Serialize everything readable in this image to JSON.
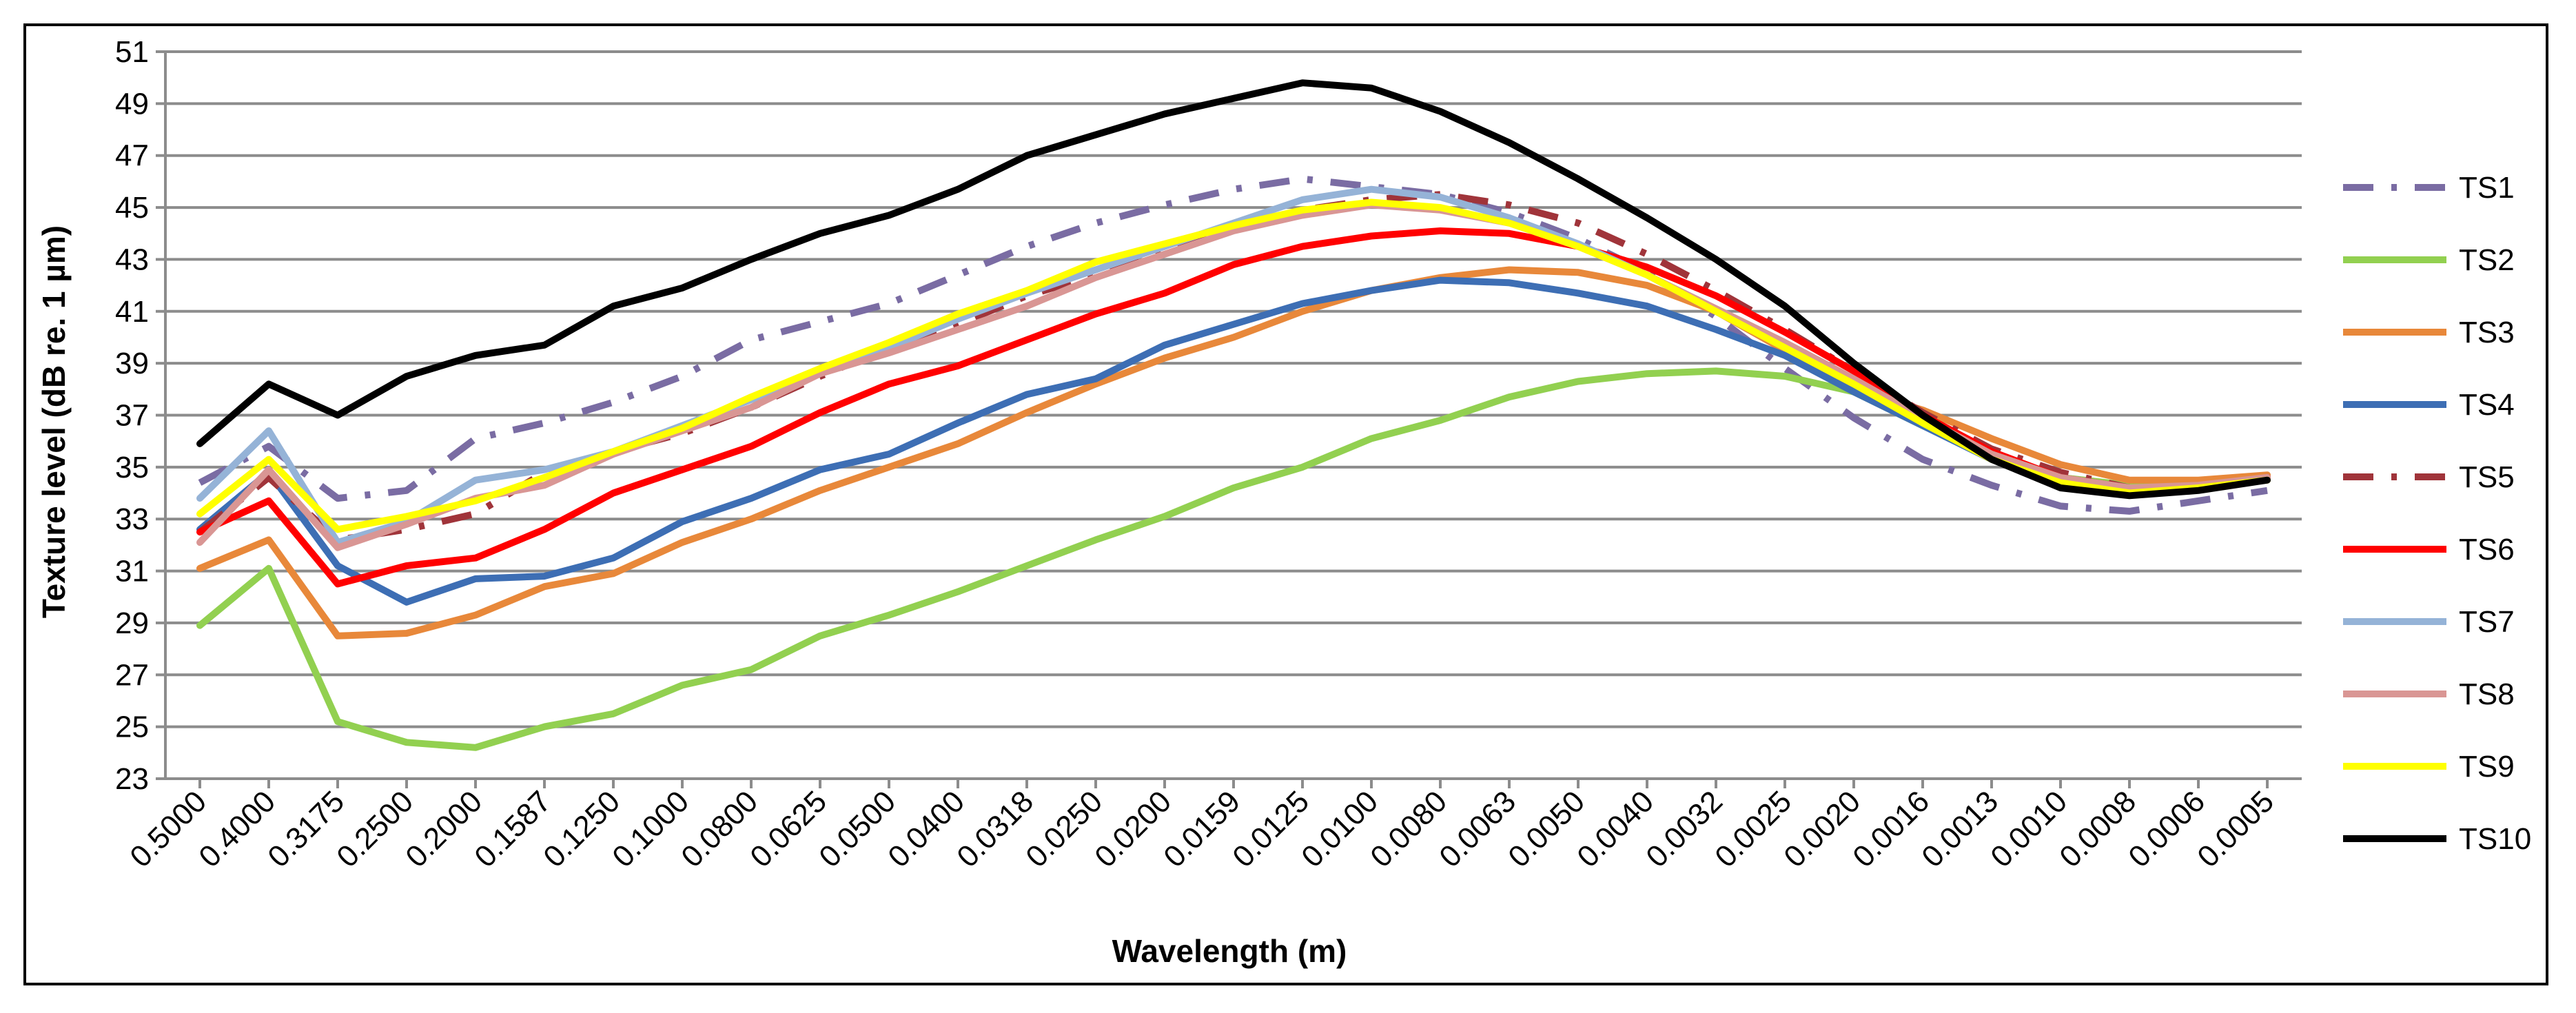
{
  "chart_data": {
    "type": "line",
    "title": "",
    "xlabel": "Wavelength (m)",
    "ylabel": "Texture level (dB re. 1 µm)",
    "ylim": [
      23,
      51
    ],
    "yticks": [
      23,
      25,
      27,
      29,
      31,
      33,
      35,
      37,
      39,
      41,
      43,
      45,
      47,
      49,
      51
    ],
    "grid": "horizontal",
    "legend": "right",
    "categories": [
      "0.5000",
      "0.4000",
      "0.3175",
      "0.2500",
      "0.2000",
      "0.1587",
      "0.1250",
      "0.1000",
      "0.0800",
      "0.0625",
      "0.0500",
      "0.0400",
      "0.0318",
      "0.0250",
      "0.0200",
      "0.0159",
      "0.0125",
      "0.0100",
      "0.0080",
      "0.0063",
      "0.0050",
      "0.0040",
      "0.0032",
      "0.0025",
      "0.0020",
      "0.0016",
      "0.0013",
      "0.0010",
      "0.0008",
      "0.0006",
      "0.0005"
    ],
    "series": [
      {
        "name": "TS1",
        "color": "#7A6CA3",
        "dash": "dashdot",
        "values": [
          34.4,
          35.8,
          33.8,
          34.1,
          36.1,
          36.7,
          37.5,
          38.5,
          39.9,
          40.6,
          41.3,
          42.4,
          43.5,
          44.4,
          45.1,
          45.7,
          46.1,
          45.8,
          45.5,
          44.8,
          43.8,
          42.5,
          40.8,
          38.8,
          36.9,
          35.3,
          34.3,
          33.5,
          33.3,
          33.7,
          34.1
        ]
      },
      {
        "name": "TS2",
        "color": "#92D050",
        "dash": "solid",
        "values": [
          28.9,
          31.1,
          25.2,
          24.4,
          24.2,
          25.0,
          25.5,
          26.6,
          27.2,
          28.5,
          29.3,
          30.2,
          31.2,
          32.2,
          33.1,
          34.2,
          35.0,
          36.1,
          36.8,
          37.7,
          38.3,
          38.6,
          38.7,
          38.5,
          37.9,
          36.6,
          35.4,
          34.6,
          34.3,
          34.4,
          34.6
        ]
      },
      {
        "name": "TS3",
        "color": "#E8883A",
        "dash": "solid",
        "values": [
          31.1,
          32.2,
          28.5,
          28.6,
          29.3,
          30.4,
          30.9,
          32.1,
          33.0,
          34.1,
          35.0,
          35.9,
          37.1,
          38.2,
          39.2,
          40.0,
          41.0,
          41.8,
          42.3,
          42.6,
          42.5,
          42.0,
          41.0,
          39.5,
          38.0,
          37.2,
          36.1,
          35.1,
          34.5,
          34.5,
          34.7
        ]
      },
      {
        "name": "TS4",
        "color": "#3D6EB4",
        "dash": "solid",
        "values": [
          32.6,
          34.8,
          31.2,
          29.8,
          30.7,
          30.8,
          31.5,
          32.9,
          33.8,
          34.9,
          35.5,
          36.7,
          37.8,
          38.4,
          39.7,
          40.5,
          41.3,
          41.8,
          42.2,
          42.1,
          41.7,
          41.2,
          40.3,
          39.3,
          37.9,
          36.6,
          35.3,
          34.4,
          34.1,
          34.2,
          34.6
        ]
      },
      {
        "name": "TS5",
        "color": "#A0343A",
        "dash": "dashdot",
        "values": [
          32.5,
          34.6,
          32.2,
          32.6,
          33.2,
          34.8,
          35.6,
          36.3,
          37.3,
          38.5,
          39.6,
          40.5,
          41.6,
          42.4,
          43.4,
          44.2,
          44.9,
          45.3,
          45.5,
          45.1,
          44.4,
          43.2,
          41.8,
          40.3,
          38.7,
          37.1,
          35.7,
          34.8,
          34.2,
          34.2,
          34.5
        ]
      },
      {
        "name": "TS6",
        "color": "#FF0000",
        "dash": "solid",
        "values": [
          32.5,
          33.7,
          30.5,
          31.2,
          31.5,
          32.6,
          34.0,
          34.9,
          35.8,
          37.1,
          38.2,
          38.9,
          39.9,
          40.9,
          41.7,
          42.8,
          43.5,
          43.9,
          44.1,
          44.0,
          43.5,
          42.7,
          41.6,
          40.2,
          38.7,
          37.0,
          35.6,
          34.6,
          34.2,
          34.2,
          34.6
        ]
      },
      {
        "name": "TS7",
        "color": "#95B3D7",
        "dash": "solid",
        "values": [
          33.8,
          36.4,
          32.1,
          32.9,
          34.5,
          34.9,
          35.6,
          36.6,
          37.6,
          38.6,
          39.6,
          40.7,
          41.7,
          42.6,
          43.5,
          44.4,
          45.3,
          45.7,
          45.4,
          44.6,
          43.6,
          42.4,
          41.0,
          39.6,
          38.3,
          36.9,
          35.4,
          34.5,
          34.1,
          34.2,
          34.5
        ]
      },
      {
        "name": "TS8",
        "color": "#D99694",
        "dash": "solid",
        "values": [
          32.1,
          34.9,
          31.9,
          32.8,
          33.8,
          34.3,
          35.5,
          36.4,
          37.3,
          38.6,
          39.4,
          40.3,
          41.2,
          42.3,
          43.2,
          44.1,
          44.7,
          45.1,
          44.9,
          44.4,
          43.5,
          42.4,
          41.1,
          39.8,
          38.4,
          36.9,
          35.5,
          34.6,
          34.2,
          34.3,
          34.6
        ]
      },
      {
        "name": "TS9",
        "color": "#FFFF00",
        "dash": "solid",
        "values": [
          33.2,
          35.3,
          32.6,
          33.1,
          33.7,
          34.6,
          35.6,
          36.5,
          37.7,
          38.8,
          39.8,
          40.9,
          41.8,
          42.9,
          43.6,
          44.3,
          44.9,
          45.2,
          45.0,
          44.4,
          43.5,
          42.4,
          41.0,
          39.6,
          38.2,
          36.7,
          35.3,
          34.4,
          34.0,
          34.2,
          34.5
        ]
      },
      {
        "name": "TS10",
        "color": "#000000",
        "dash": "solid",
        "values": [
          35.9,
          38.2,
          37.0,
          38.5,
          39.3,
          39.7,
          41.2,
          41.9,
          43.0,
          44.0,
          44.7,
          45.7,
          47.0,
          47.8,
          48.6,
          49.2,
          49.8,
          49.6,
          48.7,
          47.5,
          46.1,
          44.6,
          43.0,
          41.2,
          39.0,
          37.0,
          35.3,
          34.2,
          33.9,
          34.1,
          34.5
        ]
      }
    ]
  }
}
